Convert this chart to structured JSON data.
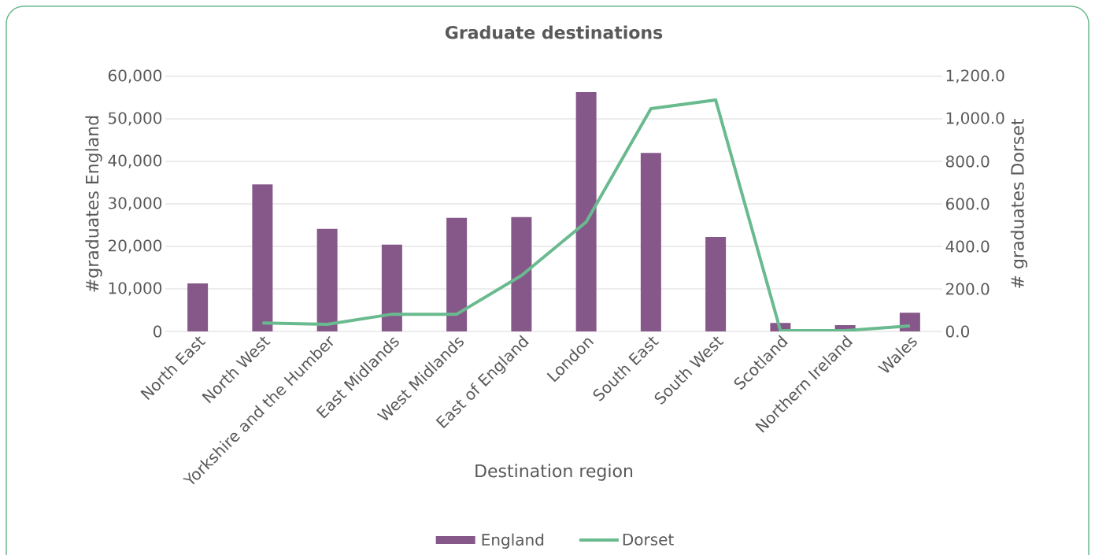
{
  "chart_data": {
    "type": "bar",
    "title": "Graduate destinations",
    "xlabel": "Destination region",
    "ylabel": "#graduates England",
    "y2label": "# graduates Dorset",
    "categories": [
      "North East",
      "North West",
      "Yorkshire and the Humber",
      "East Midlands",
      "West Midlands",
      "East of England",
      "London",
      "South East",
      "South West",
      "Scotland",
      "Northern Ireland",
      "Wales"
    ],
    "series": [
      {
        "name": "England",
        "color": "#86588a",
        "values": [
          11300,
          34600,
          24100,
          20400,
          26700,
          26900,
          56300,
          42000,
          22200,
          2000,
          1500,
          4400
        ]
      },
      {
        "name": "Dorset",
        "type": "line",
        "axis": "y2",
        "color": "#6aba8f",
        "values": [
          null,
          40,
          33,
          81,
          81,
          263,
          515,
          1048,
          1089,
          4,
          4,
          26
        ]
      }
    ],
    "ylim": [
      0,
      60000
    ],
    "yticks": [
      {
        "value": 0,
        "label": "0"
      },
      {
        "value": 10000,
        "label": "10,000"
      },
      {
        "value": 20000,
        "label": "20,000"
      },
      {
        "value": 30000,
        "label": "30,000"
      },
      {
        "value": 40000,
        "label": "40,000"
      },
      {
        "value": 50000,
        "label": "50,000"
      },
      {
        "value": 60000,
        "label": "60,000"
      }
    ],
    "y2lim": [
      0,
      1200
    ],
    "y2ticks": [
      {
        "value": 0,
        "label": "0.0"
      },
      {
        "value": 200,
        "label": "200.0"
      },
      {
        "value": 400,
        "label": "400.0"
      },
      {
        "value": 600,
        "label": "600.0"
      },
      {
        "value": 800,
        "label": "800.0"
      },
      {
        "value": 1000,
        "label": "1,000.0"
      },
      {
        "value": 1200,
        "label": "1,200.0"
      }
    ],
    "grid": "y",
    "legend": "bottom"
  }
}
